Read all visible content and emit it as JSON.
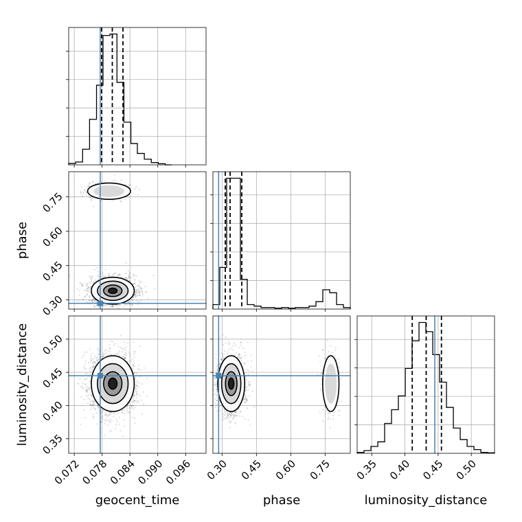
{
  "chart_data": {
    "type": "corner",
    "parameters": [
      "geocent_time",
      "phase",
      "luminosity_distance"
    ],
    "truths": {
      "geocent_time": 0.0776,
      "phase": 0.285,
      "luminosity_distance": 0.445
    },
    "truth_color": "#4682b4",
    "grid": true,
    "axes": {
      "geocent_time": {
        "label": "geocent_time",
        "range": [
          0.0708,
          0.1004
        ],
        "ticks": [
          0.072,
          0.078,
          0.084,
          0.09,
          0.096
        ],
        "tick_labels": [
          "0.072",
          "0.078",
          "0.084",
          "0.090",
          "0.096"
        ]
      },
      "phase": {
        "label": "phase",
        "range": [
          0.26,
          0.86
        ],
        "ticks": [
          0.3,
          0.45,
          0.6,
          0.75
        ],
        "tick_labels": [
          "0.30",
          "0.45",
          "0.60",
          "0.75"
        ]
      },
      "luminosity_distance": {
        "label": "luminosity_distance",
        "range": [
          0.328,
          0.535
        ],
        "ticks": [
          0.35,
          0.4,
          0.45,
          0.5
        ],
        "tick_labels": [
          "0.35",
          "0.40",
          "0.45",
          "0.50"
        ]
      }
    },
    "histograms": {
      "geocent_time": {
        "bin_edges": [
          0.0708,
          0.0723,
          0.0738,
          0.0753,
          0.0768,
          0.0782,
          0.0797,
          0.0812,
          0.0827,
          0.0842,
          0.0856,
          0.0871,
          0.0886,
          0.0901,
          0.0916,
          0.093
        ],
        "counts": [
          0.5,
          1,
          5.5,
          16,
          28,
          45.5,
          46,
          29,
          15,
          7.5,
          4,
          2,
          0.8,
          0.4,
          0
        ],
        "quantiles": [
          0.0779,
          0.0802,
          0.0825
        ]
      },
      "phase": {
        "bin_edges": [
          0.26,
          0.29,
          0.32,
          0.35,
          0.38,
          0.41,
          0.44,
          0.47,
          0.5,
          0.53,
          0.56,
          0.59,
          0.62,
          0.65,
          0.68,
          0.71,
          0.74,
          0.77,
          0.8,
          0.83,
          0.86
        ],
        "counts": [
          1.5,
          14,
          44,
          44,
          10,
          1.5,
          1,
          0.5,
          0.5,
          0.3,
          0.5,
          0.3,
          0.5,
          0.5,
          1,
          2.5,
          6.5,
          5.5,
          1.5,
          0.5
        ],
        "quantiles": [
          0.314,
          0.335,
          0.386
        ]
      },
      "luminosity_distance": {
        "bin_edges": [
          0.328,
          0.3384,
          0.3487,
          0.3591,
          0.3694,
          0.3798,
          0.3901,
          0.4005,
          0.4108,
          0.4212,
          0.4315,
          0.4419,
          0.4522,
          0.4626,
          0.473,
          0.4833,
          0.4937,
          0.504,
          0.5144,
          0.5247,
          0.5351
        ],
        "counts": [
          0.2,
          0.6,
          1.5,
          2.5,
          6.5,
          9.5,
          12.5,
          18.5,
          24.5,
          28.5,
          26.5,
          21.5,
          15.5,
          10,
          5.5,
          3,
          1.5,
          0.8,
          0.2,
          0.1
        ],
        "quantiles": [
          0.411,
          0.432,
          0.455
        ]
      }
    },
    "posterior_2d": {
      "phase_vs_geocent_time": {
        "modes": [
          {
            "center": [
              0.0803,
              0.34
            ],
            "spread": [
              0.0022,
              0.028
            ],
            "weight": 0.82
          },
          {
            "center": [
              0.0795,
              0.775
            ],
            "spread": [
              0.0022,
              0.017
            ],
            "weight": 0.18
          }
        ]
      },
      "luminosity_distance_vs_geocent_time": {
        "modes": [
          {
            "center": [
              0.0803,
              0.433
            ],
            "spread": [
              0.0022,
              0.02
            ],
            "weight": 1.0
          }
        ]
      },
      "luminosity_distance_vs_phase": {
        "modes": [
          {
            "center": [
              0.34,
              0.433
            ],
            "spread": [
              0.028,
              0.02
            ],
            "weight": 0.82
          },
          {
            "center": [
              0.775,
              0.433
            ],
            "spread": [
              0.017,
              0.02
            ],
            "weight": 0.18
          }
        ]
      }
    }
  }
}
